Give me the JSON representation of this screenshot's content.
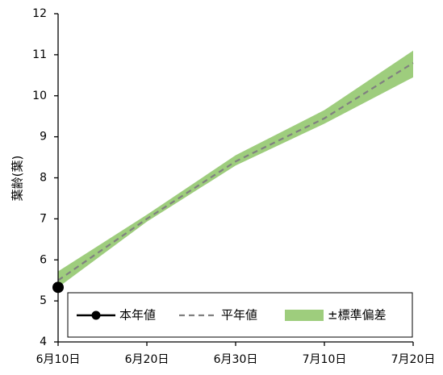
{
  "chart_data": {
    "type": "line",
    "ylabel": "葉齢(葉)",
    "xlabel": "",
    "ylim": [
      4,
      12
    ],
    "yticks": [
      4,
      5,
      6,
      7,
      8,
      9,
      10,
      11,
      12
    ],
    "xticks": [
      "6月10日",
      "6月20日",
      "6月30日",
      "7月10日",
      "7月20日"
    ],
    "grid": false,
    "legend_position": "bottom",
    "series": [
      {
        "name": "本年値",
        "style": "solid-with-markers",
        "color": "#000000",
        "points": [
          {
            "x": "6月10日",
            "y": 5.33
          }
        ]
      },
      {
        "name": "平年値",
        "style": "dashed",
        "color": "#808080",
        "points": [
          {
            "x": "6月10日",
            "y": 5.5
          },
          {
            "x": "6月20日",
            "y": 7.0
          },
          {
            "x": "6月30日",
            "y": 8.4
          },
          {
            "x": "7月10日",
            "y": 9.45
          },
          {
            "x": "7月20日",
            "y": 10.8
          }
        ]
      },
      {
        "name": "±標準偏差",
        "style": "band",
        "color": "#9ecd7d",
        "points": [
          {
            "x": "6月10日",
            "lower": 5.33,
            "upper": 5.72
          },
          {
            "x": "6月20日",
            "lower": 6.93,
            "upper": 7.1
          },
          {
            "x": "6月30日",
            "lower": 8.3,
            "upper": 8.55
          },
          {
            "x": "7月10日",
            "lower": 9.32,
            "upper": 9.65
          },
          {
            "x": "7月20日",
            "lower": 10.45,
            "upper": 11.1
          }
        ]
      }
    ]
  }
}
